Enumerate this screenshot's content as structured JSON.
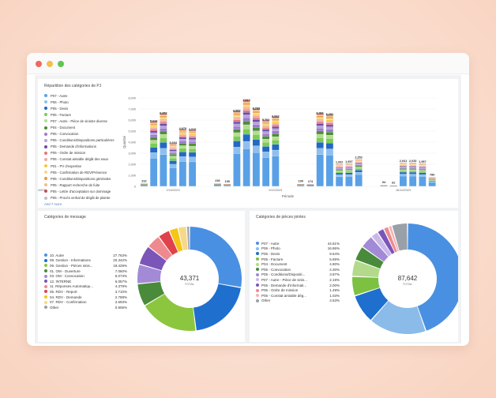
{
  "window": {
    "controls": [
      "close",
      "minimize",
      "maximize"
    ],
    "control_colors": [
      "#ed6a5e",
      "#f5bf4f",
      "#61c554"
    ]
  },
  "bar_panel": {
    "title": "Répartition des catégories de PJ",
    "legend": [
      {
        "label": "P07 - Autre",
        "color": "#5aa0e6"
      },
      {
        "label": "P06 - Photo",
        "color": "#8fbfee"
      },
      {
        "label": "P05 - Devis",
        "color": "#2369c4"
      },
      {
        "label": "P05 - Facture",
        "color": "#7ccc55"
      },
      {
        "label": "P07 - Autre - Pièce de sinistre diverse",
        "color": "#b5dd8c"
      },
      {
        "label": "P04 - Document",
        "color": "#4c8b3c"
      },
      {
        "label": "P05 - Convocation",
        "color": "#9b7ccc"
      },
      {
        "label": "P05 - Conditions/Dispositions particulières",
        "color": "#b7a2dd"
      },
      {
        "label": "P05 - Demande d'informations",
        "color": "#6c4aa8"
      },
      {
        "label": "P05 - Ordre de mission",
        "color": "#e0787f"
      },
      {
        "label": "P05 - Constat amiable dégât des eaux",
        "color": "#f0a8b0"
      },
      {
        "label": "P01 - PV d'expertise",
        "color": "#f5c842"
      },
      {
        "label": "P05 - Confirmation de RDV/Présence",
        "color": "#f5d98a"
      },
      {
        "label": "P05 - Conditions/Dispositions générales",
        "color": "#e89a3c"
      },
      {
        "label": "P05 - Rapport recherche de fuite",
        "color": "#f2be80"
      },
      {
        "label": "P05 - Lettre d'acceptation sur dommage",
        "color": "#c94a55"
      },
      {
        "label": "P05 - Procès verbal de dégât de plainte",
        "color": "#bfbfbf"
      }
    ],
    "more_link": "And 7 more"
  },
  "chart_data": [
    {
      "type": "bar",
      "stacked": true,
      "xlabel": "Période",
      "ylabel": "Quantité",
      "ylim": [
        0,
        8000
      ],
      "yticks": [
        "0",
        "1,000",
        "2,000",
        "3,000",
        "4,000",
        "5,000",
        "6,000",
        "7,000",
        "8,000"
      ],
      "xtick_labels": [
        "2/10/2023",
        "9/10/2023",
        "16/10/2023",
        "23/10/2023"
      ],
      "xtick_positions": [
        3,
        12,
        22,
        31
      ],
      "totals": [
        232,
        5634,
        6352,
        3694,
        4970,
        4910,
        236,
        195,
        6557,
        7517,
        6769,
        5762,
        6062,
        199,
        174,
        6361,
        6251,
        1932,
        1957,
        2352,
        94,
        62,
        2041,
        2033,
        1957,
        780
      ],
      "gaps_before": [
        6,
        13,
        20
      ],
      "stack_fractions": [
        0.45,
        0.09,
        0.085,
        0.065,
        0.05,
        0.045,
        0.04,
        0.035,
        0.03,
        0.025,
        0.025,
        0.02,
        0.02,
        0.02,
        0.02,
        0.015,
        0.015
      ]
    },
    {
      "type": "pie",
      "donut": true,
      "title": "Catégories de message",
      "center_value": "43,371",
      "center_label": "TOTAL",
      "slices": [
        {
          "label": "10. Autre",
          "pct": "27.763%",
          "value": 27.763,
          "color": "#4a90e2"
        },
        {
          "label": "08. Gestion - Informations",
          "pct": "20.342%",
          "value": 20.342,
          "color": "#1f6fce"
        },
        {
          "label": "09. Gestion - Pièces sinis...",
          "pct": "18.429%",
          "value": 18.429,
          "color": "#8cc63f"
        },
        {
          "label": "01. OM - Ouverture",
          "pct": "7.060%",
          "value": 7.06,
          "color": "#4a8b3b"
        },
        {
          "label": "03. OM - Convocation",
          "pct": "6.073%",
          "value": 6.073,
          "color": "#a38ad6"
        },
        {
          "label": "12. INTERNE",
          "pct": "6.057%",
          "value": 6.057,
          "color": "#7b55b8"
        },
        {
          "label": "11. Réponses Automatiqu...",
          "pct": "4.379%",
          "value": 4.379,
          "color": "#ee8a8f"
        },
        {
          "label": "05. RDV - Report",
          "pct": "3.710%",
          "value": 3.71,
          "color": "#e0424c"
        },
        {
          "label": "04. RDV - Demande",
          "pct": "2.788%",
          "value": 2.788,
          "color": "#f5c518"
        },
        {
          "label": "07. RDV - Confirmation",
          "pct": "2.693%",
          "value": 2.693,
          "color": "#f5d98a"
        },
        {
          "label": "Other",
          "pct": "0.906%",
          "value": 0.906,
          "color": "#9aa0a8"
        }
      ]
    },
    {
      "type": "pie",
      "donut": true,
      "title": "Catégories de pièces jointes",
      "center_value": "87,642",
      "center_label": "TOTAL",
      "slices": [
        {
          "label": "P07 - Autre",
          "pct": "44.61%",
          "value": 44.61,
          "color": "#4a90e2"
        },
        {
          "label": "P06 - Photo",
          "pct": "16.86%",
          "value": 16.86,
          "color": "#8bbbe8"
        },
        {
          "label": "P05 - Devis",
          "pct": "8.54%",
          "value": 8.54,
          "color": "#1f6fce"
        },
        {
          "label": "P05 - Facture",
          "pct": "5.69%",
          "value": 5.69,
          "color": "#7cc142"
        },
        {
          "label": "P04 - Document",
          "pct": "4.80%",
          "value": 4.8,
          "color": "#b3da8a"
        },
        {
          "label": "P05 - Convocation",
          "pct": "4.30%",
          "value": 4.3,
          "color": "#4a8b3b"
        },
        {
          "label": "P05 - Conditions/Dispositi...",
          "pct": "3.87%",
          "value": 3.87,
          "color": "#a38ad6"
        },
        {
          "label": "P07 - Autre - Pièce de sinis...",
          "pct": "2.19%",
          "value": 2.19,
          "color": "#c9b8ea"
        },
        {
          "label": "P05 - Demande d'informati...",
          "pct": "2.00%",
          "value": 2.0,
          "color": "#7b55b8"
        },
        {
          "label": "P05 - Ordre de mission",
          "pct": "1.49%",
          "value": 1.49,
          "color": "#ee8a8f"
        },
        {
          "label": "P05 - Constat amiable dég...",
          "pct": "1.03%",
          "value": 1.03,
          "color": "#f4b3b7"
        },
        {
          "label": "Other",
          "pct": "4.63%",
          "value": 4.63,
          "color": "#9aa0a8"
        }
      ]
    }
  ]
}
